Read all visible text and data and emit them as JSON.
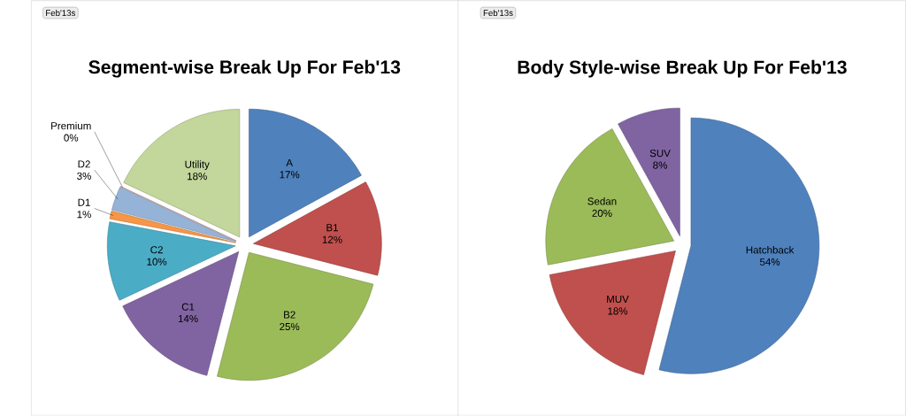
{
  "chart_data": [
    {
      "type": "pie",
      "title": "Segment-wise Break Up For Feb'13",
      "annotations": [
        "Feb'13s"
      ],
      "categories": [
        "A",
        "B1",
        "B2",
        "C1",
        "C2",
        "D1",
        "D2",
        "Premium",
        "Utility"
      ],
      "values": [
        17,
        12,
        25,
        14,
        10,
        1,
        3,
        0,
        18
      ],
      "value_labels": [
        "17%",
        "12%",
        "25%",
        "14%",
        "10%",
        "1%",
        "3%",
        "0%",
        "18%"
      ],
      "colors": [
        "#4f81bd",
        "#c0504d",
        "#9bbb59",
        "#8064a2",
        "#4bacc6",
        "#f79646",
        "#95b3d7",
        "#d99694",
        "#c3d69b"
      ]
    },
    {
      "type": "pie",
      "title": "Body Style-wise Break Up For Feb'13",
      "annotations": [
        "Feb'13s"
      ],
      "categories": [
        "Hatchback",
        "MUV",
        "Sedan",
        "SUV"
      ],
      "values": [
        54,
        18,
        20,
        8
      ],
      "value_labels": [
        "54%",
        "18%",
        "20%",
        "8%"
      ],
      "colors": [
        "#4f81bd",
        "#c0504d",
        "#9bbb59",
        "#8064a2"
      ]
    }
  ]
}
